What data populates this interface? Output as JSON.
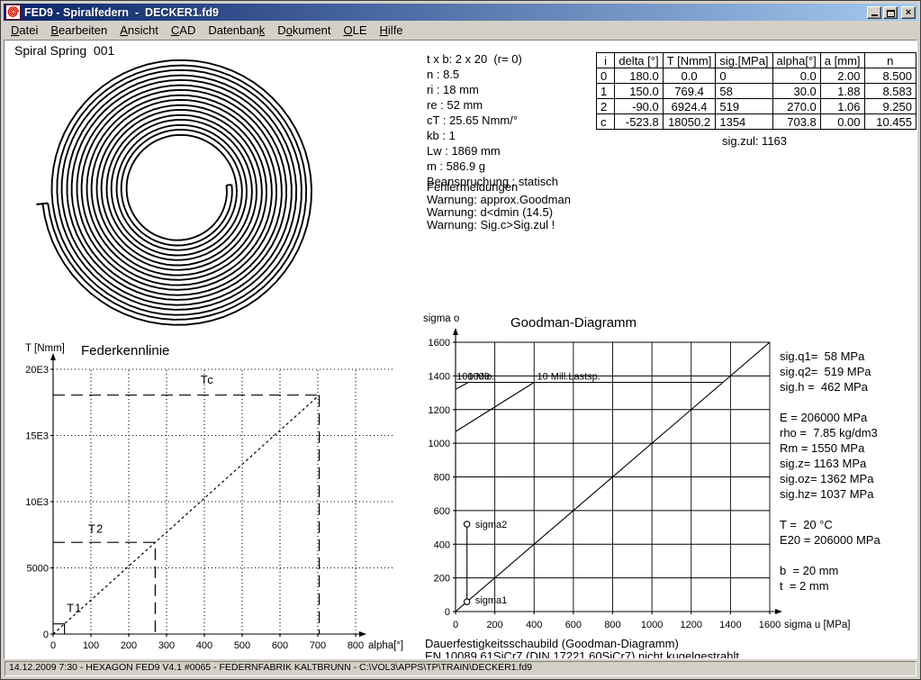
{
  "window": {
    "title": "FED9 - Spiralfedern  -  DECKER1.fd9",
    "buttons": {
      "minimize": "minimize",
      "maximize": "maximize",
      "close": "close"
    }
  },
  "menu": {
    "items": [
      {
        "label": "Datei",
        "underline": 0
      },
      {
        "label": "Bearbeiten",
        "underline": 0
      },
      {
        "label": "Ansicht",
        "underline": 0
      },
      {
        "label": "CAD",
        "underline": 0
      },
      {
        "label": "Datenbank",
        "underline": 8
      },
      {
        "label": "Dokument",
        "underline": 1
      },
      {
        "label": "OLE",
        "underline": 0
      },
      {
        "label": "Hilfe",
        "underline": 0
      }
    ]
  },
  "drawing": {
    "label": "Spiral Spring  001"
  },
  "spring_drawing": {
    "ri_mm": 18,
    "re_mm": 52,
    "t_mm": 2,
    "n_turns": 8.5
  },
  "params": {
    "lines": [
      "t x b: 2 x 20  (r= 0)",
      "n : 8.5",
      "ri : 18 mm",
      "re : 52 mm",
      "cT : 25.65 Nmm/°",
      "kb : 1",
      "Lw : 1869 mm",
      "m : 586.9 g",
      "Beanspruchung : statisch"
    ]
  },
  "errors": {
    "lines": [
      "Fehlermeldungen",
      "Warnung: approx.Goodman",
      "Warnung: d<dmin (14.5)",
      "Warnung: Sig.c>Sig.zul !"
    ]
  },
  "results_table": {
    "headers": [
      "i",
      "delta [°]",
      "T [Nmm]",
      "sig.[MPa]",
      "alpha[°]",
      "a [mm]",
      "n"
    ],
    "rows": [
      [
        "0",
        "180.0",
        "0.0",
        "0",
        "0.0",
        "2.00",
        "8.500"
      ],
      [
        "1",
        "150.0",
        "769.4",
        "58",
        "30.0",
        "1.88",
        "8.583"
      ],
      [
        "2",
        "-90.0",
        "6924.4",
        "519",
        "270.0",
        "1.06",
        "9.250"
      ],
      [
        "c",
        "-523.8",
        "18050.2",
        "1354",
        "703.8",
        "0.00",
        "10.455"
      ]
    ],
    "footer": "sig.zul: 1163"
  },
  "material_info": {
    "lines": [
      "sig.q1=  58 MPa",
      "sig.q2=  519 MPa",
      "sig.h =  462 MPa",
      "",
      "E = 206000 MPa",
      "rho =  7.85 kg/dm3",
      "Rm = 1550 MPa",
      "sig.z= 1163 MPa",
      "sig.oz= 1362 MPa",
      "sig.hz= 1037 MPa",
      "",
      "T =  20 °C",
      "E20 = 206000 MPa",
      "",
      "b  = 20 mm",
      "t  = 2 mm"
    ]
  },
  "caption": {
    "lines": [
      "Dauerfestigkeitsschaubild (Goodman-Diagramm)",
      "EN 10089 61SiCr7 (DIN 17221 60SiCr7) nicht kugelgestrahlt"
    ]
  },
  "statusbar": {
    "text": "14.12.2009 7:30 - HEXAGON FED9 V4.1 #0065 - FEDERNFABRIK KALTBRUNN - C:\\VOL3\\APPS\\TP\\TRAIN\\DECKER1.fd9"
  },
  "chart_data": [
    {
      "type": "line",
      "title": "Federkennlinie",
      "xlabel": "alpha[°]",
      "ylabel": "T [Nmm]",
      "xlim": [
        0,
        800
      ],
      "ylim": [
        0,
        20000
      ],
      "xticks": [
        0,
        100,
        200,
        300,
        400,
        500,
        600,
        700,
        800
      ],
      "yticks": [
        [
          0,
          "0"
        ],
        [
          5000,
          "5000"
        ],
        [
          10000,
          "10E3"
        ],
        [
          15000,
          "15E3"
        ],
        [
          20000,
          "20E3"
        ]
      ],
      "grid": "dotted",
      "legend_position": "none",
      "series": [
        {
          "name": "spring-characteristic",
          "dash": "dot",
          "points": [
            [
              0,
              0
            ],
            [
              703.8,
              18050.2
            ]
          ]
        },
        {
          "name": "Tc-horizontal",
          "dash": "long",
          "points": [
            [
              0,
              18050.2
            ],
            [
              703.8,
              18050.2
            ]
          ]
        },
        {
          "name": "Tc-vertical",
          "dash": "long",
          "points": [
            [
              703.8,
              18050.2
            ],
            [
              703.8,
              0
            ]
          ]
        },
        {
          "name": "T2-step",
          "dash": "long",
          "points": [
            [
              0,
              6924.4
            ],
            [
              270,
              6924.4
            ],
            [
              270,
              0
            ]
          ]
        },
        {
          "name": "T1-box",
          "dash": "solid",
          "points": [
            [
              0,
              769.4
            ],
            [
              30,
              769.4
            ],
            [
              30,
              0
            ]
          ]
        }
      ],
      "labels": [
        {
          "text": "Tc",
          "x": 390,
          "y": 18900
        },
        {
          "text": "T2",
          "x": 93,
          "y": 7650
        },
        {
          "text": "T1",
          "x": 36,
          "y": 1650
        }
      ]
    },
    {
      "type": "line",
      "title": "Goodman-Diagramm",
      "xlabel": "sigma u [MPa]",
      "ylabel": "sigma o",
      "xlim": [
        0,
        1600
      ],
      "ylim": [
        0,
        1600
      ],
      "xticks": [
        0,
        200,
        400,
        600,
        800,
        1000,
        1200,
        1400,
        1600
      ],
      "yticks": [
        [
          0,
          "0"
        ],
        [
          200,
          "200"
        ],
        [
          400,
          "400"
        ],
        [
          600,
          "600"
        ],
        [
          800,
          "800"
        ],
        [
          1000,
          "1000"
        ],
        [
          1200,
          "1200"
        ],
        [
          1400,
          "1400"
        ],
        [
          1600,
          "1600"
        ]
      ],
      "grid": "solid",
      "legend_position": "none",
      "series": [
        {
          "name": "mean-stress-diagonal",
          "dash": "solid",
          "points": [
            [
              0,
              0
            ],
            [
              1600,
              1600
            ]
          ]
        },
        {
          "name": "sig-oz-limit",
          "dash": "solid",
          "points": [
            [
              0,
              1362
            ],
            [
              1362,
              1362
            ]
          ]
        },
        {
          "name": "limit-100000-cycles",
          "dash": "solid",
          "points": [
            [
              0,
              1320
            ],
            [
              65,
              1362
            ]
          ]
        },
        {
          "name": "limit-10mill-cycles",
          "dash": "solid",
          "points": [
            [
              0,
              1069
            ],
            [
              400,
              1362
            ]
          ]
        },
        {
          "name": "stress-range",
          "dash": "solid",
          "marker": "circle",
          "points": [
            [
              58,
              58
            ],
            [
              58,
              519
            ]
          ]
        }
      ],
      "labels": [
        {
          "text": "100000",
          "x": 5,
          "y": 1400
        },
        {
          "text": "1 Mio.",
          "x": 62,
          "y": 1400
        },
        {
          "text": "10 Mill.Lastsp.",
          "x": 415,
          "y": 1400
        },
        {
          "text": "sigma2",
          "x": 100,
          "y": 519
        },
        {
          "text": "sigma1",
          "x": 100,
          "y": 70
        }
      ]
    }
  ]
}
